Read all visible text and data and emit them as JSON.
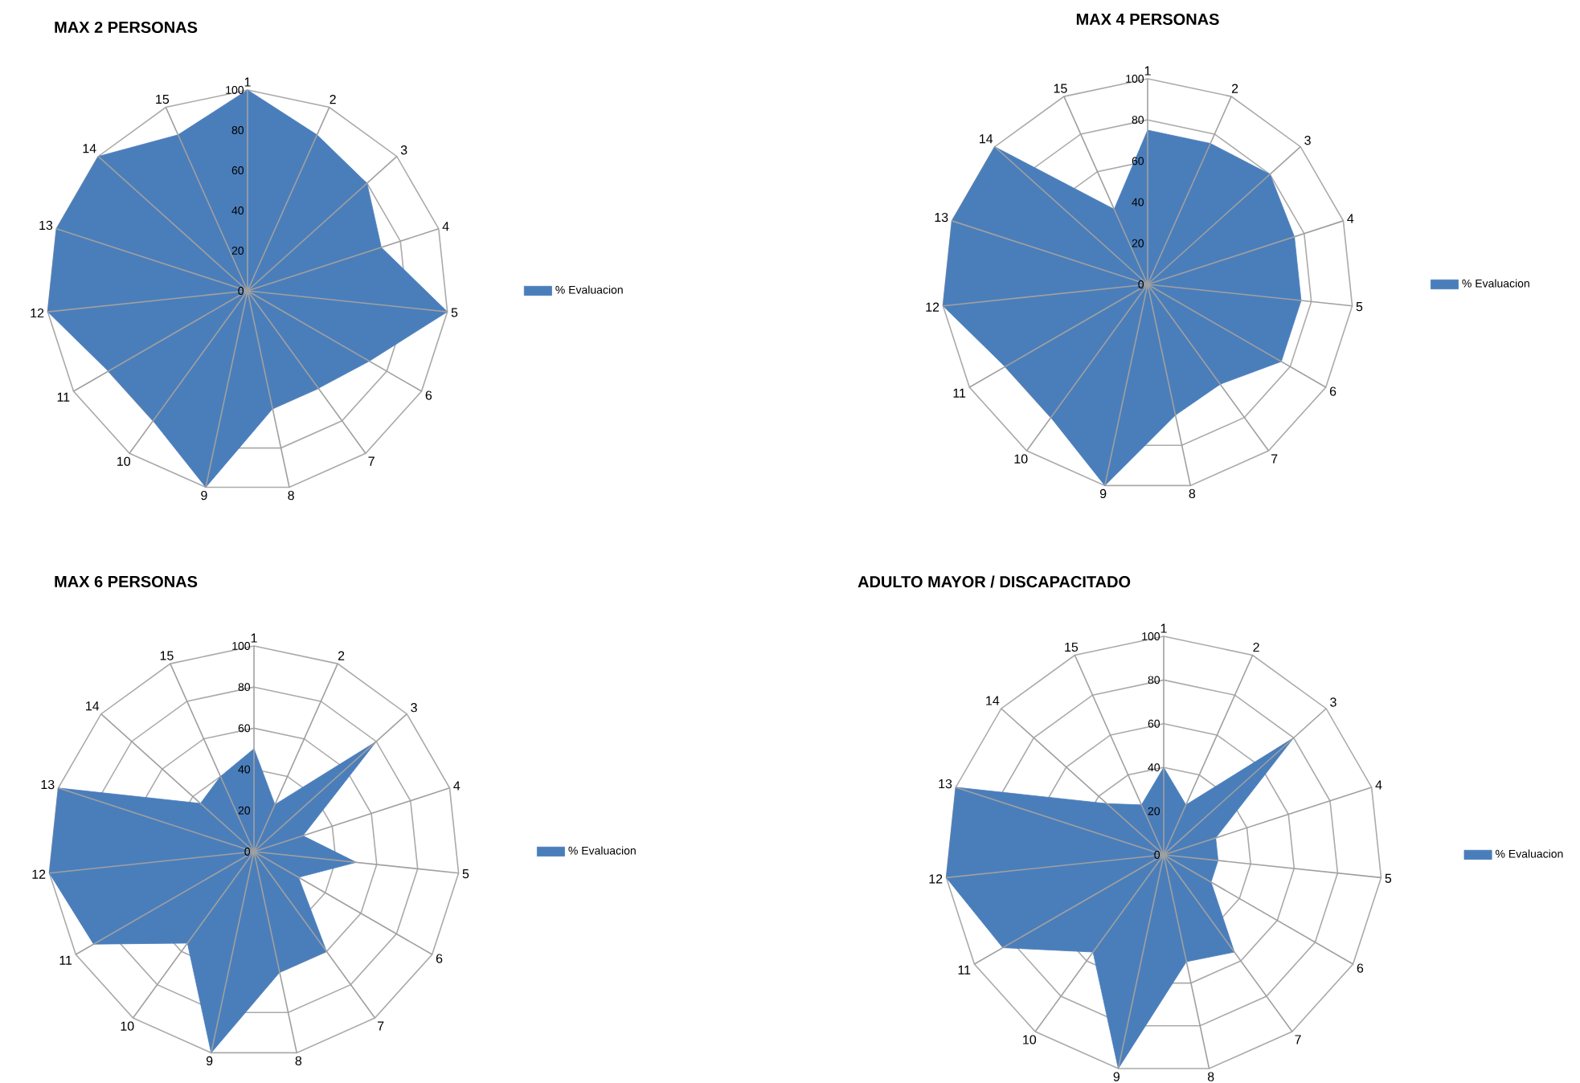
{
  "chart_data": [
    {
      "type": "radar",
      "title": "MAX 2 PERSONAS",
      "categories": [
        "1",
        "2",
        "3",
        "4",
        "5",
        "6",
        "7",
        "8",
        "9",
        "10",
        "11",
        "12",
        "13",
        "14",
        "15"
      ],
      "ylim": [
        0,
        100
      ],
      "yticks": [
        0,
        20,
        40,
        60,
        80,
        100
      ],
      "grid": true,
      "legend": "right",
      "series": [
        {
          "name": "% Evaluacion",
          "color": "#4a7ebb",
          "values": [
            100,
            85,
            80,
            70,
            100,
            70,
            60,
            60,
            100,
            80,
            80,
            100,
            100,
            100,
            85
          ]
        }
      ]
    },
    {
      "type": "radar",
      "title": "MAX 4 PERSONAS",
      "categories": [
        "1",
        "2",
        "3",
        "4",
        "5",
        "6",
        "7",
        "8",
        "9",
        "10",
        "11",
        "12",
        "13",
        "14",
        "15"
      ],
      "ylim": [
        0,
        100
      ],
      "yticks": [
        0,
        20,
        40,
        60,
        80,
        100
      ],
      "grid": true,
      "legend": "right",
      "series": [
        {
          "name": "% Evaluacion",
          "color": "#4a7ebb",
          "values": [
            75,
            75,
            80,
            75,
            75,
            75,
            60,
            65,
            100,
            80,
            80,
            100,
            100,
            100,
            40
          ]
        }
      ]
    },
    {
      "type": "radar",
      "title": "MAX 6 PERSONAS",
      "categories": [
        "1",
        "2",
        "3",
        "4",
        "5",
        "6",
        "7",
        "8",
        "9",
        "10",
        "11",
        "12",
        "13",
        "14",
        "15"
      ],
      "ylim": [
        0,
        100
      ],
      "yticks": [
        0,
        20,
        40,
        60,
        80,
        100
      ],
      "grid": true,
      "legend": "right",
      "series": [
        {
          "name": "% Evaluacion",
          "color": "#4a7ebb",
          "values": [
            50,
            25,
            80,
            25,
            50,
            25,
            60,
            60,
            100,
            55,
            90,
            100,
            100,
            35,
            40
          ]
        }
      ]
    },
    {
      "type": "radar",
      "title": "ADULTO MAYOR / DISCAPACITADO",
      "categories": [
        "1",
        "2",
        "3",
        "4",
        "5",
        "6",
        "7",
        "8",
        "9",
        "10",
        "11",
        "12",
        "13",
        "14",
        "15"
      ],
      "ylim": [
        0,
        100
      ],
      "yticks": [
        0,
        20,
        40,
        60,
        80,
        100
      ],
      "grid": true,
      "legend": "right",
      "series": [
        {
          "name": "% Evaluacion",
          "color": "#4a7ebb",
          "values": [
            40,
            25,
            80,
            25,
            25,
            25,
            55,
            50,
            100,
            55,
            85,
            100,
            100,
            35,
            25
          ]
        }
      ]
    }
  ]
}
